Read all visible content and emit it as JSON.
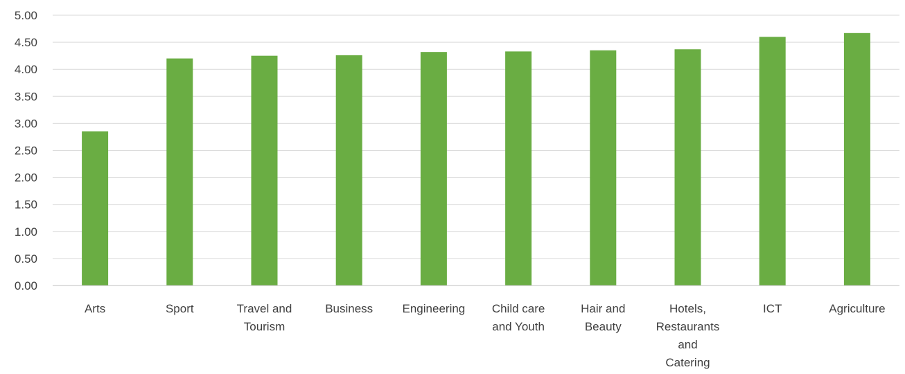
{
  "chart_data": {
    "type": "bar",
    "categories": [
      "Arts",
      "Sport",
      "Travel and Tourism",
      "Business",
      "Engineering",
      "Child care and Youth",
      "Hair and Beauty",
      "Hotels, Restaurants and Catering",
      "ICT",
      "Agriculture"
    ],
    "category_label_lines": [
      [
        "Arts"
      ],
      [
        "Sport"
      ],
      [
        "Travel and",
        "Tourism"
      ],
      [
        "Business"
      ],
      [
        "Engineering"
      ],
      [
        "Child care",
        "and Youth"
      ],
      [
        "Hair and",
        "Beauty"
      ],
      [
        "Hotels,",
        "Restaurants",
        "and",
        "Catering"
      ],
      [
        "ICT"
      ],
      [
        "Agriculture"
      ]
    ],
    "values": [
      2.85,
      4.2,
      4.25,
      4.26,
      4.32,
      4.33,
      4.35,
      4.37,
      4.6,
      4.67
    ],
    "ylim": [
      0,
      5
    ],
    "yticks": [
      "0.00",
      "0.50",
      "1.00",
      "1.50",
      "2.00",
      "2.50",
      "3.00",
      "3.50",
      "4.00",
      "4.50",
      "5.00"
    ],
    "grid": true,
    "legend": "none",
    "bar_color": "#6aad43",
    "title": "",
    "xlabel": "",
    "ylabel": ""
  }
}
